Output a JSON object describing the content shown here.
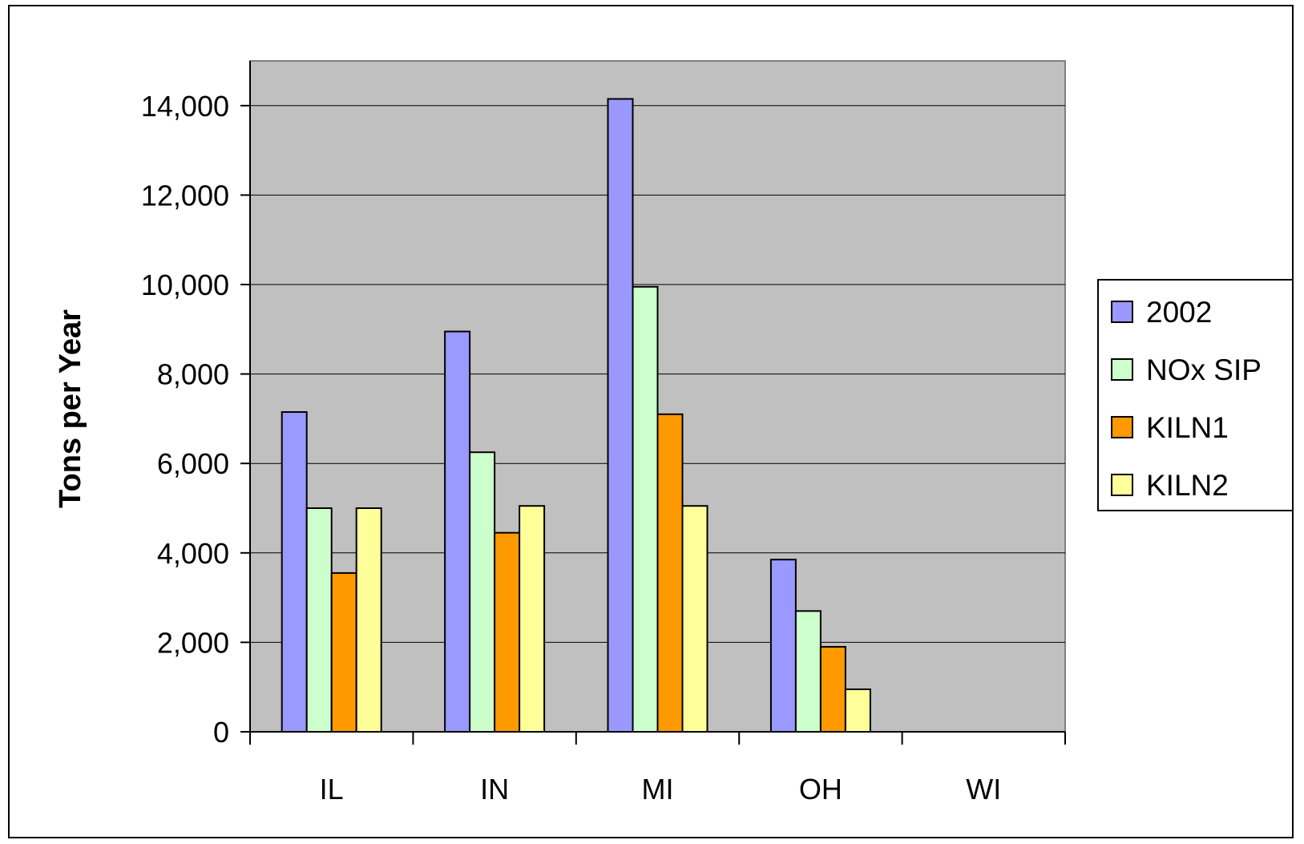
{
  "chart_data": {
    "type": "bar",
    "title": "",
    "xlabel": "",
    "ylabel": "Tons per Year",
    "categories": [
      "IL",
      "IN",
      "MI",
      "OH",
      "WI"
    ],
    "series": [
      {
        "name": "2002",
        "values": [
          7150,
          8950,
          14150,
          3850,
          0
        ],
        "color": "#9999ff"
      },
      {
        "name": "NOx SIP",
        "values": [
          5000,
          6250,
          9950,
          2700,
          0
        ],
        "color": "#ccffcc"
      },
      {
        "name": "KILN1",
        "values": [
          3550,
          4450,
          7100,
          1900,
          0
        ],
        "color": "#ff9900"
      },
      {
        "name": "KILN2",
        "values": [
          5000,
          5050,
          5050,
          950,
          0
        ],
        "color": "#ffff99"
      }
    ],
    "ylim": [
      0,
      15000
    ],
    "yticks": [
      0,
      2000,
      4000,
      6000,
      8000,
      10000,
      12000,
      14000
    ],
    "ytick_labels": [
      "0",
      "2,000",
      "4,000",
      "6,000",
      "8,000",
      "10,000",
      "12,000",
      "14,000"
    ],
    "grid": true,
    "legend": "right",
    "plot_background": "#c0c0c0"
  }
}
